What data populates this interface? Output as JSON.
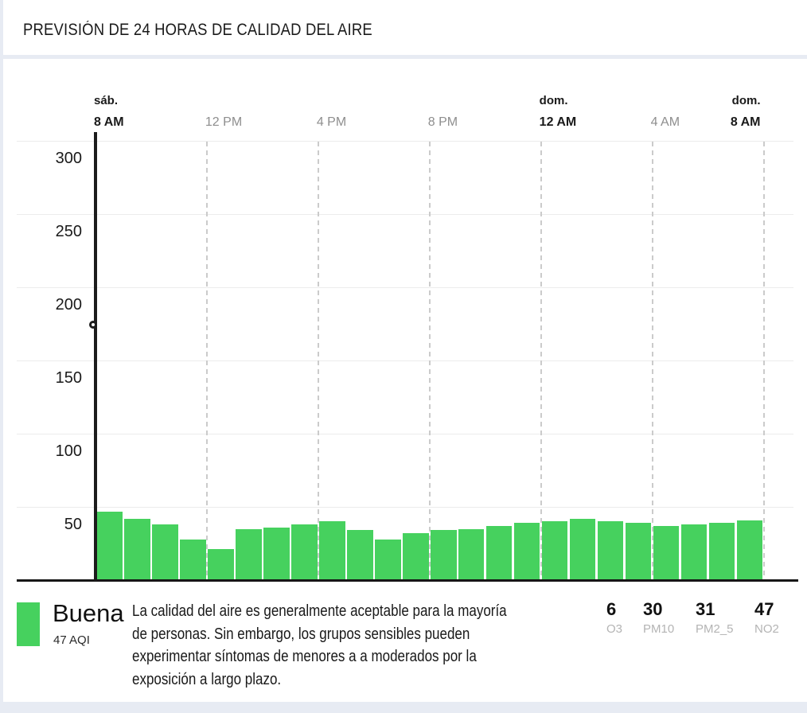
{
  "header": {
    "title": "PREVISIÓN DE 24 HORAS DE CALIDAD DEL AIRE"
  },
  "chart_data": {
    "type": "bar",
    "title": "PREVISIÓN DE 24 HORAS DE CALIDAD DEL AIRE",
    "unit": "AQI",
    "x_start": "sáb. 8 AM",
    "x_end": "dom. 8 AM",
    "x_interval": "1 hora",
    "x_axis_ticks": [
      {
        "day": "sáb.",
        "hour": "8 AM",
        "emphasized": true
      },
      {
        "day": "",
        "hour": "12 PM",
        "emphasized": false
      },
      {
        "day": "",
        "hour": "4 PM",
        "emphasized": false
      },
      {
        "day": "",
        "hour": "8 PM",
        "emphasized": false
      },
      {
        "day": "dom.",
        "hour": "12 AM",
        "emphasized": true
      },
      {
        "day": "",
        "hour": "4 AM",
        "emphasized": false
      },
      {
        "day": "dom.",
        "hour": "8 AM",
        "emphasized": true
      }
    ],
    "yticks": [
      50,
      100,
      150,
      200,
      250,
      300
    ],
    "ylim": [
      0,
      300
    ],
    "values": [
      47,
      42,
      38,
      28,
      21,
      35,
      36,
      38,
      40,
      34,
      28,
      32,
      34,
      35,
      37,
      39,
      40,
      42,
      40,
      39,
      37,
      38,
      39,
      41
    ],
    "bar_color": "#46d15e",
    "grid": {
      "horizontal": "solid",
      "vertical": "dashed every 4 hours"
    },
    "now_line": {
      "at_tick": "sáb. 8 AM",
      "style": "solid black vertical line with circular handle"
    }
  },
  "legend": {
    "category": "Buena",
    "aqi": "47 AQI",
    "swatch_color": "#46d15e",
    "description": "La calidad del aire es generalmente aceptable para la mayoría\nde personas. Sin embargo, los grupos sensibles pueden\nexperimentar síntomas de menores a a moderados por la\nexposición a largo plazo.",
    "pollutants": [
      {
        "value": "6",
        "label": "O3"
      },
      {
        "value": "30",
        "label": "PM10"
      },
      {
        "value": "31",
        "label": "PM2_5"
      },
      {
        "value": "47",
        "label": "NO2"
      }
    ]
  }
}
